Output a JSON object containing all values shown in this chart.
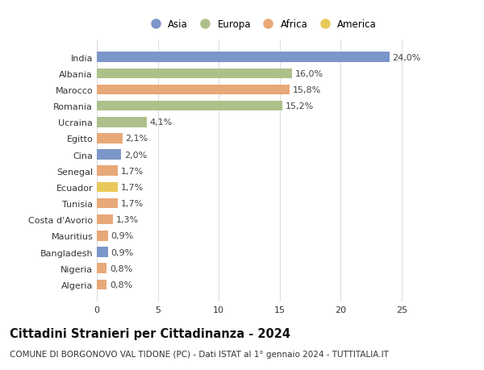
{
  "countries": [
    "India",
    "Albania",
    "Marocco",
    "Romania",
    "Ucraina",
    "Egitto",
    "Cina",
    "Senegal",
    "Ecuador",
    "Tunisia",
    "Costa d'Avorio",
    "Mauritius",
    "Bangladesh",
    "Nigeria",
    "Algeria"
  ],
  "values": [
    24.0,
    16.0,
    15.8,
    15.2,
    4.1,
    2.1,
    2.0,
    1.7,
    1.7,
    1.7,
    1.3,
    0.9,
    0.9,
    0.8,
    0.8
  ],
  "labels": [
    "24,0%",
    "16,0%",
    "15,8%",
    "15,2%",
    "4,1%",
    "2,1%",
    "2,0%",
    "1,7%",
    "1,7%",
    "1,7%",
    "1,3%",
    "0,9%",
    "0,9%",
    "0,8%",
    "0,8%"
  ],
  "continent": [
    "Asia",
    "Europa",
    "Africa",
    "Europa",
    "Europa",
    "Africa",
    "Asia",
    "Africa",
    "America",
    "Africa",
    "Africa",
    "Africa",
    "Asia",
    "Africa",
    "Africa"
  ],
  "continent_colors": {
    "Asia": "#7b96c8",
    "Europa": "#aec08a",
    "Africa": "#e8a878",
    "America": "#e8c858"
  },
  "legend_order": [
    "Asia",
    "Europa",
    "Africa",
    "America"
  ],
  "title": "Cittadini Stranieri per Cittadinanza - 2024",
  "subtitle": "COMUNE DI BORGONOVO VAL TIDONE (PC) - Dati ISTAT al 1° gennaio 2024 - TUTTITALIA.IT",
  "xlim": [
    0,
    27
  ],
  "xticks": [
    0,
    5,
    10,
    15,
    20,
    25
  ],
  "background_color": "#ffffff",
  "bar_height": 0.62,
  "grid_color": "#dddddd",
  "label_fontsize": 8.0,
  "title_fontsize": 10.5,
  "subtitle_fontsize": 7.5,
  "ytick_fontsize": 8.0,
  "xtick_fontsize": 8.0
}
